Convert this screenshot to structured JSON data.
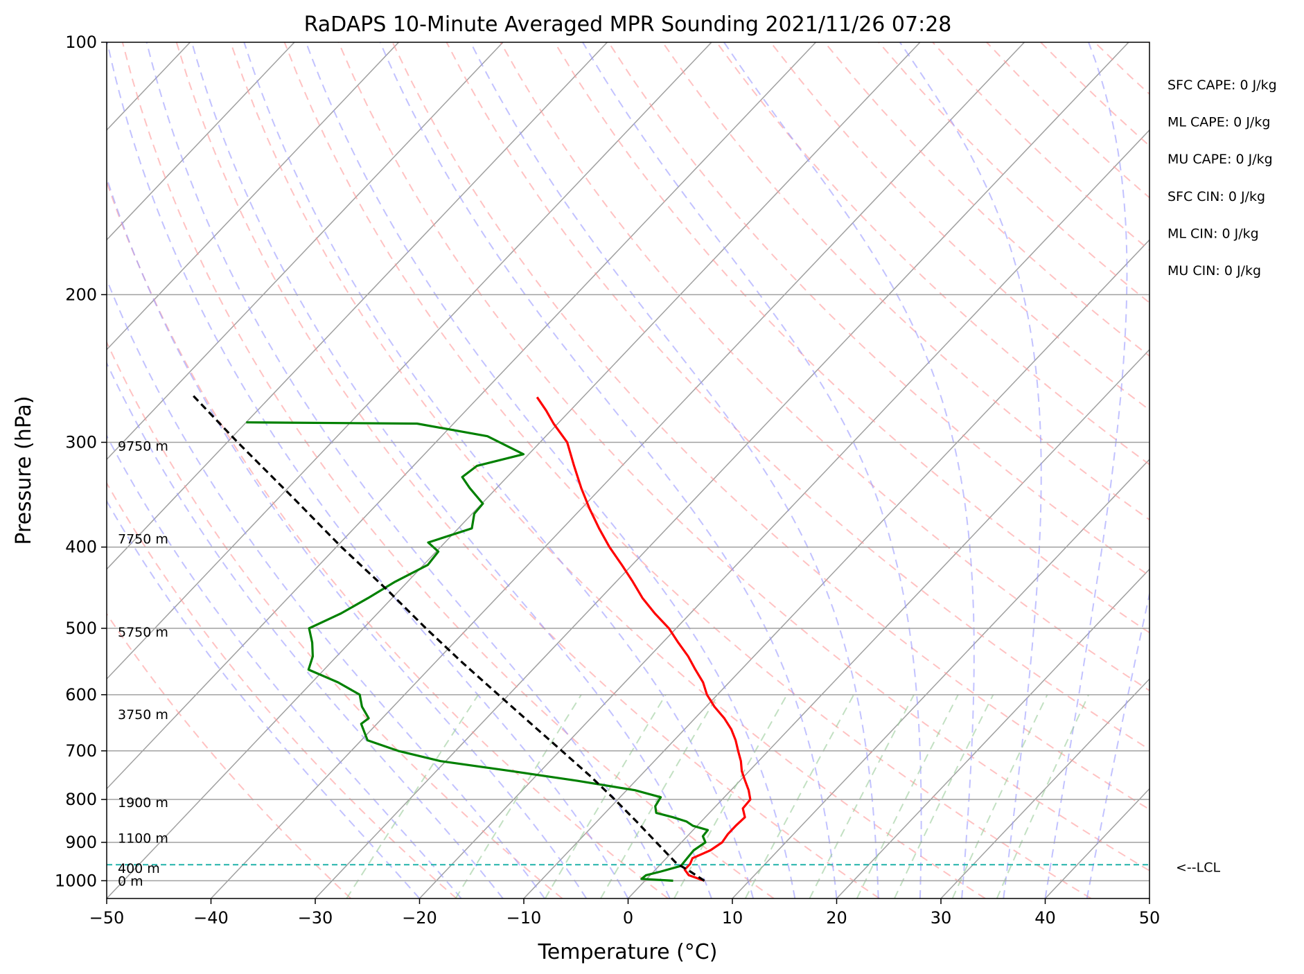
{
  "chart_data": {
    "type": "line",
    "subtype": "skew-t log-p sounding",
    "title": "RaDAPS 10-Minute Averaged MPR Sounding 2021/11/26 07:28",
    "xlabel": "Temperature (°C)",
    "ylabel": "Pressure (hPa)",
    "xlim": [
      -50,
      50
    ],
    "ylim": [
      1050,
      100
    ],
    "y_scale": "log",
    "x_ticks": [
      "−50",
      "−40",
      "−30",
      "−20",
      "−10",
      "0",
      "10",
      "20",
      "30",
      "40",
      "50"
    ],
    "y_ticks": [
      "100",
      "200",
      "300",
      "400",
      "500",
      "600",
      "700",
      "800",
      "900",
      "1000"
    ],
    "grid": true,
    "series": [
      {
        "role": "temperature",
        "color": "#ff0000",
        "points": [
          [
            1000,
            5.7
          ],
          [
            985,
            3.7
          ],
          [
            970,
            2.8
          ],
          [
            955,
            2.8
          ],
          [
            940,
            2.5
          ],
          [
            920,
            3.5
          ],
          [
            900,
            3.9
          ],
          [
            880,
            3.7
          ],
          [
            860,
            3.7
          ],
          [
            840,
            3.8
          ],
          [
            820,
            2.8
          ],
          [
            800,
            2.7
          ],
          [
            780,
            1.7
          ],
          [
            760,
            0.5
          ],
          [
            740,
            -0.7
          ],
          [
            720,
            -1.7
          ],
          [
            700,
            -2.9
          ],
          [
            680,
            -4.1
          ],
          [
            660,
            -5.5
          ],
          [
            640,
            -7.2
          ],
          [
            620,
            -9.2
          ],
          [
            600,
            -11.0
          ],
          [
            580,
            -12.5
          ],
          [
            560,
            -14.4
          ],
          [
            540,
            -16.3
          ],
          [
            520,
            -18.5
          ],
          [
            500,
            -20.7
          ],
          [
            480,
            -23.4
          ],
          [
            460,
            -26.0
          ],
          [
            440,
            -28.4
          ],
          [
            420,
            -31.0
          ],
          [
            400,
            -33.8
          ],
          [
            380,
            -36.5
          ],
          [
            360,
            -39.2
          ],
          [
            340,
            -41.9
          ],
          [
            320,
            -44.6
          ],
          [
            300,
            -47.4
          ],
          [
            285,
            -50.4
          ],
          [
            275,
            -52.3
          ],
          [
            265,
            -54.4
          ]
        ]
      },
      {
        "role": "dewpoint",
        "color": "#008000",
        "points": [
          [
            1000,
            2.7
          ],
          [
            995,
            -0.5
          ],
          [
            985,
            -0.4
          ],
          [
            975,
            0.7
          ],
          [
            960,
            2.1
          ],
          [
            940,
            2.0
          ],
          [
            920,
            1.9
          ],
          [
            900,
            2.3
          ],
          [
            885,
            1.5
          ],
          [
            870,
            1.4
          ],
          [
            860,
            -0.4
          ],
          [
            850,
            -1.4
          ],
          [
            840,
            -3.1
          ],
          [
            830,
            -5.1
          ],
          [
            815,
            -5.8
          ],
          [
            795,
            -6.1
          ],
          [
            780,
            -9.2
          ],
          [
            760,
            -15.6
          ],
          [
            740,
            -22.8
          ],
          [
            720,
            -30.5
          ],
          [
            700,
            -35.5
          ],
          [
            680,
            -39.4
          ],
          [
            650,
            -41.5
          ],
          [
            640,
            -41.3
          ],
          [
            620,
            -43.0
          ],
          [
            600,
            -44.3
          ],
          [
            580,
            -47.5
          ],
          [
            560,
            -51.5
          ],
          [
            540,
            -52.3
          ],
          [
            520,
            -53.6
          ],
          [
            500,
            -55.2
          ],
          [
            480,
            -53.5
          ],
          [
            460,
            -52.3
          ],
          [
            440,
            -51.2
          ],
          [
            420,
            -49.6
          ],
          [
            405,
            -49.8
          ],
          [
            395,
            -51.6
          ],
          [
            380,
            -48.7
          ],
          [
            365,
            -49.8
          ],
          [
            355,
            -49.9
          ],
          [
            340,
            -52.6
          ],
          [
            330,
            -54.3
          ],
          [
            320,
            -53.9
          ],
          [
            310,
            -50.5
          ],
          [
            295,
            -55.6
          ],
          [
            285,
            -63.5
          ],
          [
            284,
            -80.0
          ]
        ]
      },
      {
        "role": "parcel",
        "color": "#000000",
        "points": [
          [
            1000,
            5.7
          ],
          [
            975,
            3.5
          ],
          [
            955,
            1.6
          ],
          [
            950,
            1.2
          ],
          [
            900,
            -2.4
          ],
          [
            850,
            -6.2
          ],
          [
            800,
            -10.3
          ],
          [
            750,
            -14.8
          ],
          [
            700,
            -19.8
          ],
          [
            650,
            -25.2
          ],
          [
            600,
            -31.0
          ],
          [
            550,
            -37.3
          ],
          [
            500,
            -44.0
          ],
          [
            450,
            -51.2
          ],
          [
            400,
            -59.5
          ],
          [
            350,
            -68.5
          ],
          [
            300,
            -79.0
          ],
          [
            262,
            -88.0
          ]
        ]
      }
    ],
    "background_lines": [
      {
        "role": "isotherms",
        "color": "#a0a0a0"
      },
      {
        "role": "dry adiabats",
        "color": "#ff9999"
      },
      {
        "role": "moist adiabats",
        "color": "#9999ff"
      },
      {
        "role": "mixing ratio lines",
        "color": "#99cc99"
      }
    ],
    "lcl_pressure": 957,
    "lcl_label": "<--LCL",
    "lcl_color": "#20b2aa",
    "height_labels": [
      {
        "p": 1000,
        "text": "0 m"
      },
      {
        "p": 966,
        "text": "400 m"
      },
      {
        "p": 889,
        "text": "1100 m"
      },
      {
        "p": 806,
        "text": "1900 m"
      },
      {
        "p": 633,
        "text": "3750 m"
      },
      {
        "p": 505,
        "text": "5750 m"
      },
      {
        "p": 391,
        "text": "7750 m"
      },
      {
        "p": 303,
        "text": "9750 m"
      }
    ],
    "indices": [
      "SFC CAPE: 0 J/kg",
      "ML CAPE: 0 J/kg",
      "MU CAPE: 0 J/kg",
      "SFC CIN: 0 J/kg",
      "ML CIN: 0 J/kg",
      "MU CIN: 0 J/kg"
    ]
  }
}
